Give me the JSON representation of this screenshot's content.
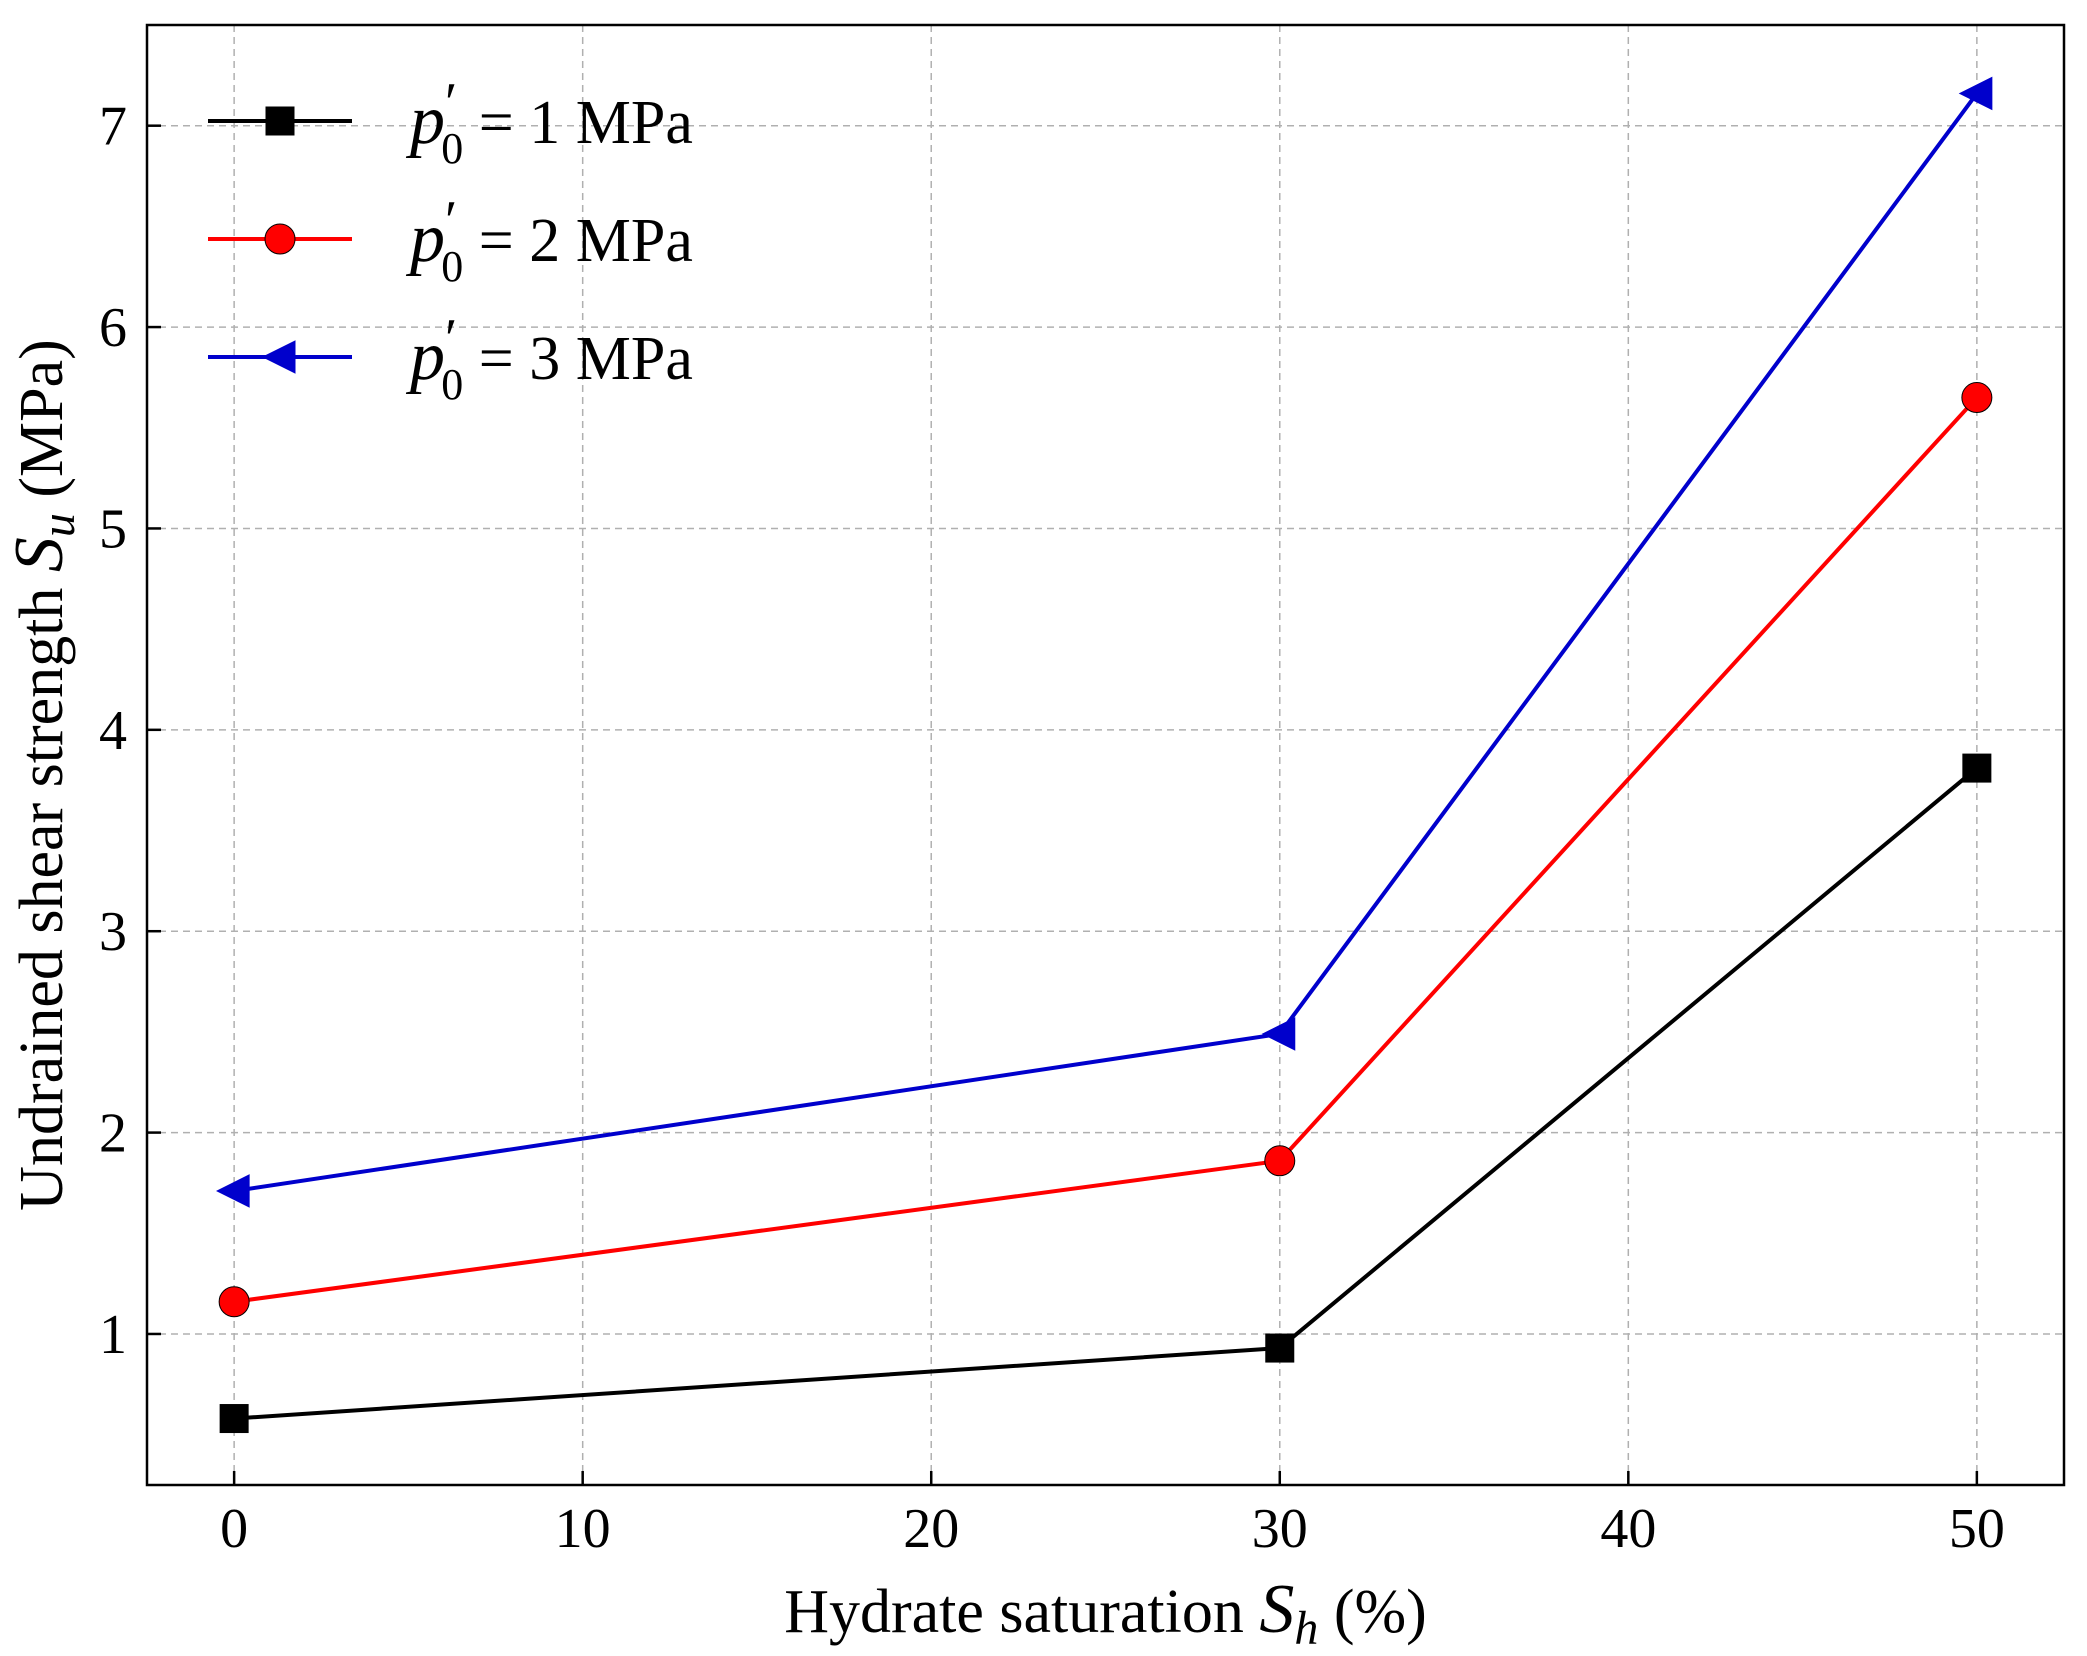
{
  "chart_data": {
    "type": "line",
    "title": "",
    "xlabel": {
      "prefix": "Hydrate saturation ",
      "symbol": "S",
      "subscript": "h",
      "suffix": " (%)"
    },
    "ylabel": {
      "prefix": "Undrained shear strength ",
      "symbol": "S",
      "subscript": "u",
      "suffix": " (MPa)"
    },
    "x": [
      0,
      30,
      50
    ],
    "xlim": [
      -2.5,
      52.5
    ],
    "ylim": [
      0.25,
      7.5
    ],
    "xticks": [
      0,
      10,
      20,
      30,
      40,
      50
    ],
    "yticks": [
      1,
      2,
      3,
      4,
      5,
      6,
      7
    ],
    "grid": true,
    "legend_position": "top-left",
    "series": [
      {
        "name": "p′0 = 1 MPa",
        "legend": {
          "var": "p",
          "prime": "′",
          "sub": "0",
          "rest": " = 1 MPa"
        },
        "color": "#000000",
        "marker": "square",
        "values": [
          0.58,
          0.93,
          3.81
        ]
      },
      {
        "name": "p′0 = 2 MPa",
        "legend": {
          "var": "p",
          "prime": "′",
          "sub": "0",
          "rest": " = 2 MPa"
        },
        "color": "#ff0000",
        "marker": "circle",
        "values": [
          1.16,
          1.86,
          5.65
        ]
      },
      {
        "name": "p′0 = 3 MPa",
        "legend": {
          "var": "p",
          "prime": "′",
          "sub": "0",
          "rest": " = 3 MPa"
        },
        "color": "#0000cc",
        "marker": "triangle-left",
        "values": [
          1.71,
          2.49,
          7.16
        ]
      }
    ]
  }
}
